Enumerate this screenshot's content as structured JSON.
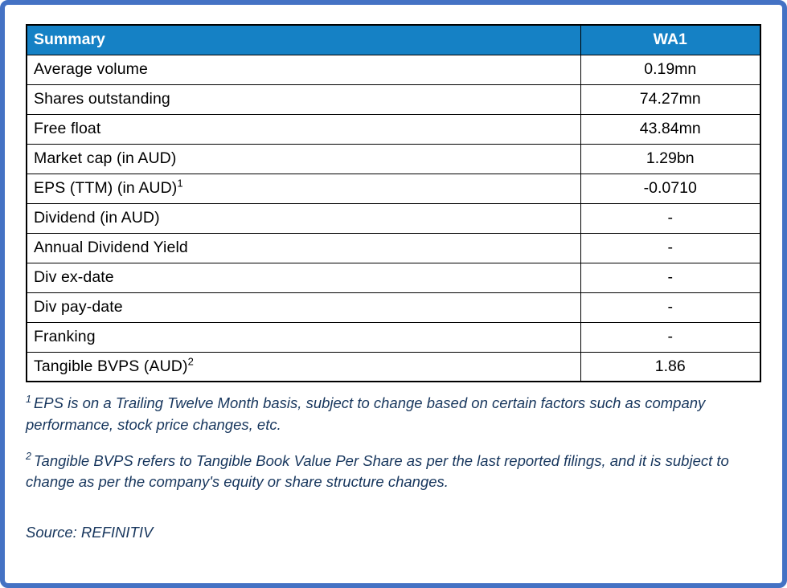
{
  "colors": {
    "frame_border": "#4472C4",
    "header_bg": "#1581C5",
    "header_text": "#FFFFFF",
    "cell_text": "#000000",
    "footnote_text": "#17365D"
  },
  "table": {
    "header": {
      "label": "Summary",
      "value": "WA1"
    },
    "rows": [
      {
        "label": "Average volume",
        "value": "0.19mn"
      },
      {
        "label": "Shares outstanding",
        "value": "74.27mn"
      },
      {
        "label": "Free float",
        "value": "43.84mn"
      },
      {
        "label": "Market cap (in AUD)",
        "value": "1.29bn"
      },
      {
        "label": "EPS (TTM) (in AUD)",
        "sup": "1",
        "value": "-0.0710"
      },
      {
        "label": "Dividend (in AUD)",
        "value": "-"
      },
      {
        "label": "Annual Dividend Yield",
        "value": "-"
      },
      {
        "label": "Div ex-date",
        "value": "-"
      },
      {
        "label": "Div pay-date",
        "value": "-"
      },
      {
        "label": "Franking",
        "value": "-"
      },
      {
        "label": "Tangible BVPS (AUD)",
        "sup": "2",
        "value": "1.86"
      }
    ]
  },
  "footnotes": [
    {
      "sup": "1",
      "text": "EPS is on a Trailing Twelve Month basis, subject to change based on certain factors such as company performance, stock price changes, etc."
    },
    {
      "sup": "2",
      "text": "Tangible BVPS refers to Tangible Book Value Per Share as per the last reported filings, and it is subject to change as per the company's equity or share structure changes."
    }
  ],
  "source": "Source: REFINITIV"
}
